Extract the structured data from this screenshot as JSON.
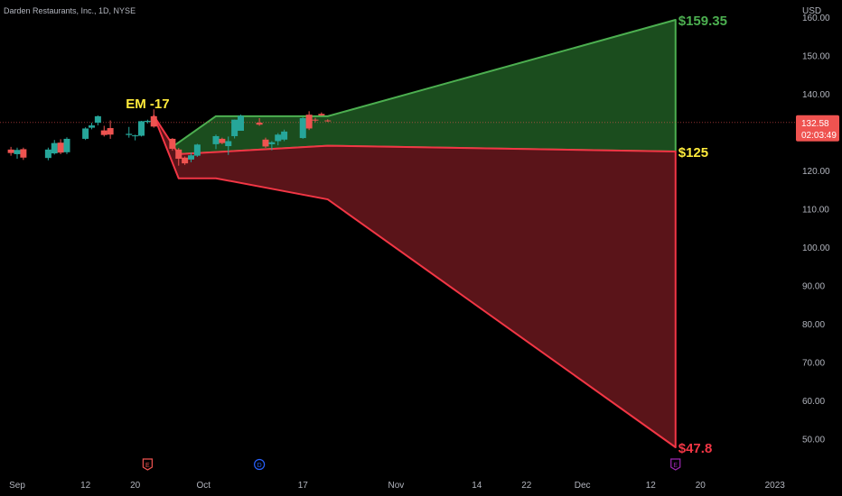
{
  "header": {
    "symbol_title": "Darden Restaurants, Inc., 1D, NYSE",
    "currency": "USD"
  },
  "price_tag": {
    "price": "132.58",
    "countdown": "02:03:49"
  },
  "colors": {
    "up": "#26a69a",
    "down": "#ef5350",
    "upper_zone_fill": "#1b4d1e",
    "upper_zone_line": "#4caf50",
    "lower_zone_fill": "#5a1419",
    "lower_zone_line": "#f23645",
    "label_green": "#4caf50",
    "label_yellow": "#ffeb3b",
    "label_red": "#f23645",
    "price_line": "#ef5350",
    "axis_text": "#b2b5be"
  },
  "chart_data": {
    "type": "candlestick",
    "title": "Darden Restaurants, Inc., 1D, NYSE",
    "y_axis": {
      "ticks": [
        50,
        60,
        70,
        80,
        90,
        100,
        110,
        120,
        130,
        140,
        150,
        160
      ],
      "tick_labels": [
        "50.00",
        "60.00",
        "70.00",
        "80.00",
        "90.00",
        "100.00",
        "110.00",
        "120.00",
        "130.00",
        "140.00",
        "150.00",
        "160.00"
      ],
      "range": [
        41,
        165
      ],
      "unit": "USD"
    },
    "x_axis": {
      "range": [
        "2022-09-01",
        "2023-01-01"
      ],
      "ticks": [
        {
          "date": "2022-09-01",
          "label": "Sep"
        },
        {
          "date": "2022-09-12",
          "label": "12"
        },
        {
          "date": "2022-09-20",
          "label": "20"
        },
        {
          "date": "2022-10-01",
          "label": "Oct"
        },
        {
          "date": "2022-10-17",
          "label": "17"
        },
        {
          "date": "2022-11-01",
          "label": "Nov"
        },
        {
          "date": "2022-11-14",
          "label": "14"
        },
        {
          "date": "2022-11-22",
          "label": "22"
        },
        {
          "date": "2022-12-01",
          "label": "Dec"
        },
        {
          "date": "2022-12-12",
          "label": "12"
        },
        {
          "date": "2022-12-20",
          "label": "20"
        },
        {
          "date": "2023-01-01",
          "label": "2023"
        }
      ]
    },
    "candles": [
      {
        "date": "2022-08-31",
        "o": 125.5,
        "h": 126.2,
        "l": 123.9,
        "c": 124.6
      },
      {
        "date": "2022-09-01",
        "o": 124.3,
        "h": 126.0,
        "l": 123.1,
        "c": 125.4
      },
      {
        "date": "2022-09-02",
        "o": 125.6,
        "h": 126.0,
        "l": 122.8,
        "c": 123.4
      },
      {
        "date": "2022-09-06",
        "o": 123.3,
        "h": 126.0,
        "l": 122.7,
        "c": 125.5
      },
      {
        "date": "2022-09-07",
        "o": 124.5,
        "h": 128.0,
        "l": 124.2,
        "c": 127.2
      },
      {
        "date": "2022-09-08",
        "o": 127.3,
        "h": 128.2,
        "l": 124.3,
        "c": 124.7
      },
      {
        "date": "2022-09-09",
        "o": 124.8,
        "h": 128.7,
        "l": 124.3,
        "c": 128.3
      },
      {
        "date": "2022-09-12",
        "o": 128.3,
        "h": 131.3,
        "l": 128.0,
        "c": 131.0
      },
      {
        "date": "2022-09-13",
        "o": 131.2,
        "h": 132.5,
        "l": 130.8,
        "c": 131.8
      },
      {
        "date": "2022-09-14",
        "o": 132.5,
        "h": 134.4,
        "l": 131.8,
        "c": 134.2
      },
      {
        "date": "2022-09-15",
        "o": 130.5,
        "h": 131.7,
        "l": 128.9,
        "c": 129.3
      },
      {
        "date": "2022-09-16",
        "o": 131.1,
        "h": 133.1,
        "l": 128.3,
        "c": 129.4
      },
      {
        "date": "2022-09-19",
        "o": 129.3,
        "h": 131.4,
        "l": 128.6,
        "c": 129.6
      },
      {
        "date": "2022-09-20",
        "o": 129.0,
        "h": 129.4,
        "l": 127.9,
        "c": 129.2
      },
      {
        "date": "2022-09-21",
        "o": 129.1,
        "h": 133.0,
        "l": 128.9,
        "c": 132.9
      },
      {
        "date": "2022-09-22",
        "o": 132.7,
        "h": 133.3,
        "l": 132.3,
        "c": 133.0
      },
      {
        "date": "2022-09-23",
        "o": 134.2,
        "h": 136.0,
        "l": 131.2,
        "c": 131.5
      },
      {
        "date": "2022-09-26",
        "o": 128.3,
        "h": 128.5,
        "l": 125.2,
        "c": 125.7
      },
      {
        "date": "2022-09-27",
        "o": 125.5,
        "h": 125.9,
        "l": 121.3,
        "c": 123.1
      },
      {
        "date": "2022-09-28",
        "o": 123.4,
        "h": 123.7,
        "l": 121.5,
        "c": 121.9
      },
      {
        "date": "2022-09-29",
        "o": 122.9,
        "h": 124.7,
        "l": 122.2,
        "c": 124.0
      },
      {
        "date": "2022-09-30",
        "o": 123.9,
        "h": 127.0,
        "l": 123.6,
        "c": 126.8
      },
      {
        "date": "2022-10-03",
        "o": 126.9,
        "h": 129.4,
        "l": 125.6,
        "c": 129.0
      },
      {
        "date": "2022-10-04",
        "o": 128.3,
        "h": 128.6,
        "l": 126.9,
        "c": 127.2
      },
      {
        "date": "2022-10-05",
        "o": 126.4,
        "h": 128.9,
        "l": 124.1,
        "c": 127.7
      },
      {
        "date": "2022-10-06",
        "o": 129.0,
        "h": 133.3,
        "l": 128.4,
        "c": 133.3
      },
      {
        "date": "2022-10-07",
        "o": 130.4,
        "h": 134.6,
        "l": 130.4,
        "c": 134.3
      },
      {
        "date": "2022-10-10",
        "o": 132.5,
        "h": 133.7,
        "l": 131.7,
        "c": 132.0
      },
      {
        "date": "2022-10-11",
        "o": 128.1,
        "h": 128.6,
        "l": 125.9,
        "c": 126.3
      },
      {
        "date": "2022-10-12",
        "o": 126.9,
        "h": 127.7,
        "l": 125.3,
        "c": 127.4
      },
      {
        "date": "2022-10-13",
        "o": 127.7,
        "h": 129.8,
        "l": 126.6,
        "c": 129.4
      },
      {
        "date": "2022-10-14",
        "o": 128.1,
        "h": 130.7,
        "l": 127.7,
        "c": 130.2
      },
      {
        "date": "2022-10-17",
        "o": 128.5,
        "h": 134.0,
        "l": 128.3,
        "c": 133.7
      },
      {
        "date": "2022-10-18",
        "o": 134.6,
        "h": 135.5,
        "l": 130.6,
        "c": 131.0
      },
      {
        "date": "2022-10-19",
        "o": 133.3,
        "h": 133.8,
        "l": 132.6,
        "c": 133.2
      },
      {
        "date": "2022-10-20",
        "o": 134.8,
        "h": 135.2,
        "l": 134.3,
        "c": 134.4
      },
      {
        "date": "2022-10-21",
        "o": 133.1,
        "h": 133.4,
        "l": 132.7,
        "c": 132.9
      }
    ],
    "last_price": 132.58,
    "expected_move_zones": {
      "upper": [
        {
          "date": "2022-09-26",
          "value": 126.2
        },
        {
          "date": "2022-10-03",
          "value": 134.2
        },
        {
          "date": "2022-10-21",
          "value": 134.2
        },
        {
          "date": "2022-12-16",
          "value": 159.35
        },
        {
          "date": "2022-12-16",
          "value": 125
        },
        {
          "date": "2022-10-21",
          "value": 126.5
        },
        {
          "date": "2022-09-27",
          "value": 124.3
        }
      ],
      "lower": [
        {
          "date": "2022-09-23",
          "value": 134.3
        },
        {
          "date": "2022-09-27",
          "value": 118.0
        },
        {
          "date": "2022-10-03",
          "value": 118.0
        },
        {
          "date": "2022-10-21",
          "value": 112.5
        },
        {
          "date": "2022-12-16",
          "value": 47.8
        },
        {
          "date": "2022-12-16",
          "value": 125
        },
        {
          "date": "2022-10-21",
          "value": 126.5
        },
        {
          "date": "2022-09-27",
          "value": 124.3
        }
      ]
    },
    "annotations": [
      {
        "text": "EM -17",
        "date": "2022-09-22",
        "value": 137.5,
        "color": "label_yellow",
        "anchor": "middle"
      },
      {
        "text": "$159.35",
        "date": "2022-12-16",
        "value": 159.35,
        "color": "label_green",
        "anchor": "start"
      },
      {
        "text": "$125",
        "date": "2022-12-16",
        "value": 125,
        "color": "label_yellow",
        "anchor": "start"
      },
      {
        "text": "$47.8",
        "date": "2022-12-16",
        "value": 47.8,
        "color": "label_red",
        "anchor": "start"
      }
    ],
    "event_markers": [
      {
        "date": "2022-09-22",
        "label": "E",
        "color": "#ef5350"
      },
      {
        "date": "2022-10-10",
        "label": "D",
        "color": "#2962ff"
      },
      {
        "date": "2022-12-16",
        "label": "E",
        "color": "#9c27b0"
      }
    ]
  }
}
